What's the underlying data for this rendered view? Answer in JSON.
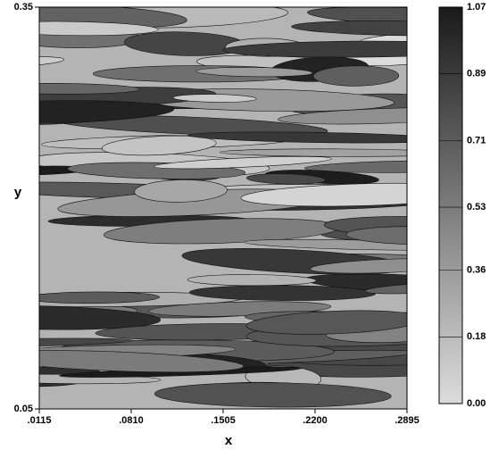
{
  "chart_data": {
    "type": "contour",
    "xlabel": "x",
    "ylabel": "y",
    "xlim": [
      0.0115,
      0.2895
    ],
    "xticks": [
      {
        "value": 0.0115,
        "label": ".0115"
      },
      {
        "value": 0.081,
        "label": ".0810"
      },
      {
        "value": 0.1505,
        "label": ".1505"
      },
      {
        "value": 0.22,
        "label": ".2200"
      },
      {
        "value": 0.2895,
        "label": ".2895"
      }
    ],
    "ylim": [
      0.05,
      0.35
    ],
    "yticks": [
      0.05,
      0.35
    ],
    "colorbar": {
      "lim": [
        0,
        1.07
      ],
      "ticks": [
        {
          "value": 0,
          "label": "0.00"
        },
        0.18,
        0.36,
        0.53,
        0.71,
        0.89,
        1.07
      ],
      "colors": [
        "#dcdcdc",
        "#1a1a1a"
      ]
    }
  }
}
